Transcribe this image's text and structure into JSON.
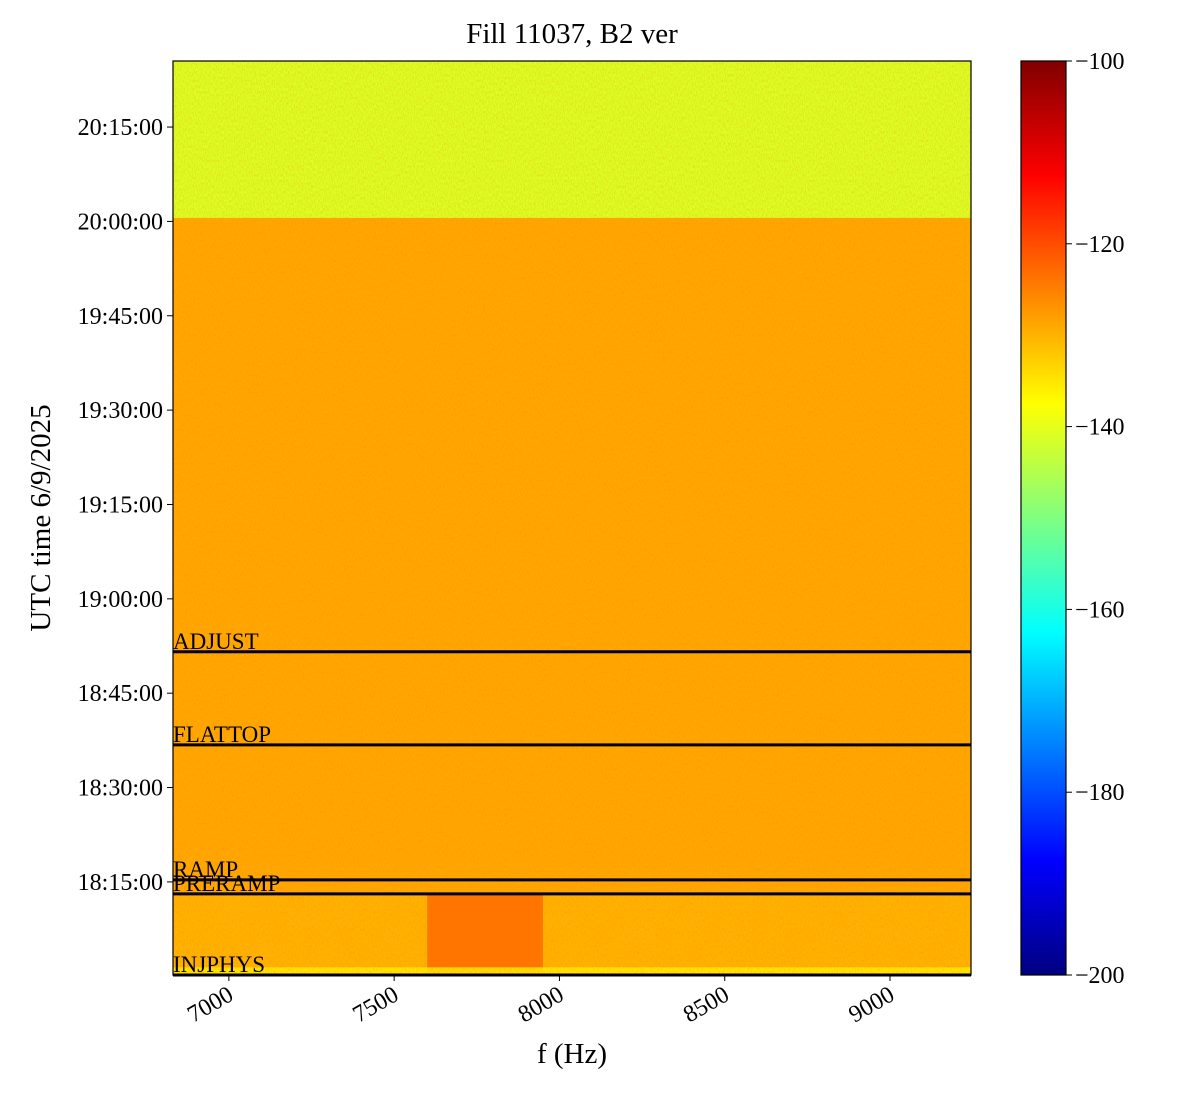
{
  "chart_data": {
    "type": "heatmap",
    "title": "Fill 11037, B2 ver",
    "xlabel": "f (Hz)",
    "ylabel": "UTC time 6/9/2025",
    "xlim": [
      6831,
      9245
    ],
    "xticks": [
      7000,
      7500,
      8000,
      8500,
      9000
    ],
    "ylim": [
      "18:00:12",
      "20:25:30"
    ],
    "yticks": [
      "18:15:00",
      "18:30:00",
      "18:45:00",
      "19:00:00",
      "19:15:00",
      "19:30:00",
      "19:45:00",
      "20:00:00",
      "20:15:00"
    ],
    "time_edges": [
      "18:00:12",
      "18:01:30",
      "18:13:06",
      "20:00:38",
      "20:25:30"
    ],
    "freq_edges": [
      6831,
      7600,
      7950,
      9245
    ],
    "z": [
      [
        -135,
        -134,
        -135
      ],
      [
        -130,
        -124,
        -130
      ],
      [
        -129,
        -129,
        -129
      ],
      [
        -141,
        -141,
        -141
      ]
    ],
    "colormap": "jet",
    "clim": [
      -200,
      -100
    ],
    "cticks": [
      {
        "value": -200,
        "label": "−200"
      },
      {
        "value": -180,
        "label": "−180"
      },
      {
        "value": -160,
        "label": "−160"
      },
      {
        "value": -140,
        "label": "−140"
      },
      {
        "value": -120,
        "label": "−120"
      },
      {
        "value": -100,
        "label": "−100"
      }
    ],
    "events": [
      {
        "label": "ADJUST",
        "time": "18:51:35"
      },
      {
        "label": "FLATTOP",
        "time": "18:36:47"
      },
      {
        "label": "RAMP",
        "time": "18:15:19"
      },
      {
        "label": "PRERAMP",
        "time": "18:13:06"
      },
      {
        "label": "INJPHYS",
        "time": "18:00:12"
      }
    ],
    "event_color": "#000000"
  }
}
